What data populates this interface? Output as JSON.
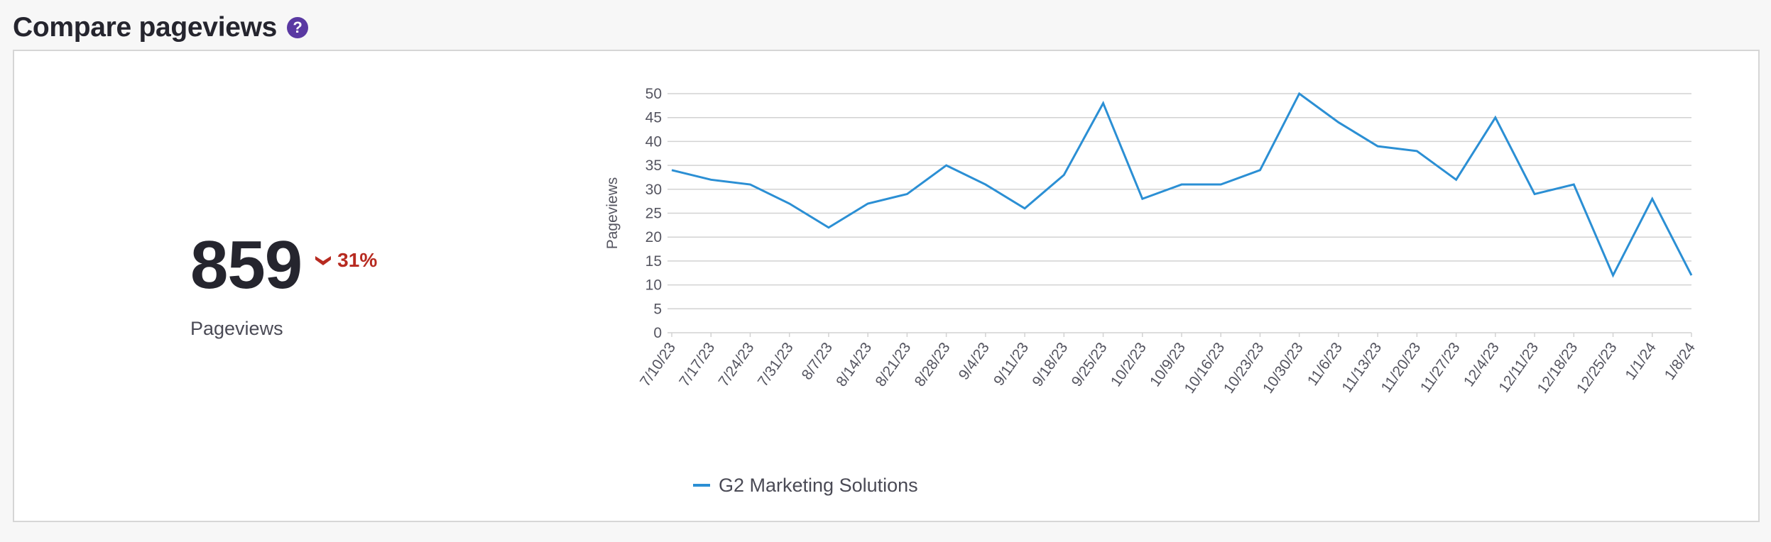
{
  "header": {
    "title": "Compare pageviews",
    "help_icon": "question-circle-icon"
  },
  "metric": {
    "value": "859",
    "delta_text": "31%",
    "delta_direction": "down",
    "delta_icon": "chevron-down-icon",
    "label": "Pageviews",
    "delta_color": "#b72a20"
  },
  "chart_data": {
    "type": "line",
    "title": "",
    "xlabel": "",
    "ylabel": "Pageviews",
    "ylim": [
      0,
      50
    ],
    "yticks": [
      0,
      5,
      10,
      15,
      20,
      25,
      30,
      35,
      40,
      45,
      50
    ],
    "grid": true,
    "legend_position": "bottom-center",
    "categories": [
      "7/10/23",
      "7/17/23",
      "7/24/23",
      "7/31/23",
      "8/7/23",
      "8/14/23",
      "8/21/23",
      "8/28/23",
      "9/4/23",
      "9/11/23",
      "9/18/23",
      "9/25/23",
      "10/2/23",
      "10/9/23",
      "10/16/23",
      "10/23/23",
      "10/30/23",
      "11/6/23",
      "11/13/23",
      "11/20/23",
      "11/27/23",
      "12/4/23",
      "12/11/23",
      "12/18/23",
      "12/25/23",
      "1/1/24",
      "1/8/24"
    ],
    "series": [
      {
        "name": "G2 Marketing Solutions",
        "color": "#2b8fd4",
        "values": [
          34,
          32,
          31,
          27,
          22,
          27,
          29,
          35,
          31,
          26,
          33,
          48,
          28,
          31,
          31,
          34,
          50,
          44,
          39,
          38,
          32,
          45,
          29,
          31,
          12,
          28,
          12
        ]
      }
    ]
  }
}
